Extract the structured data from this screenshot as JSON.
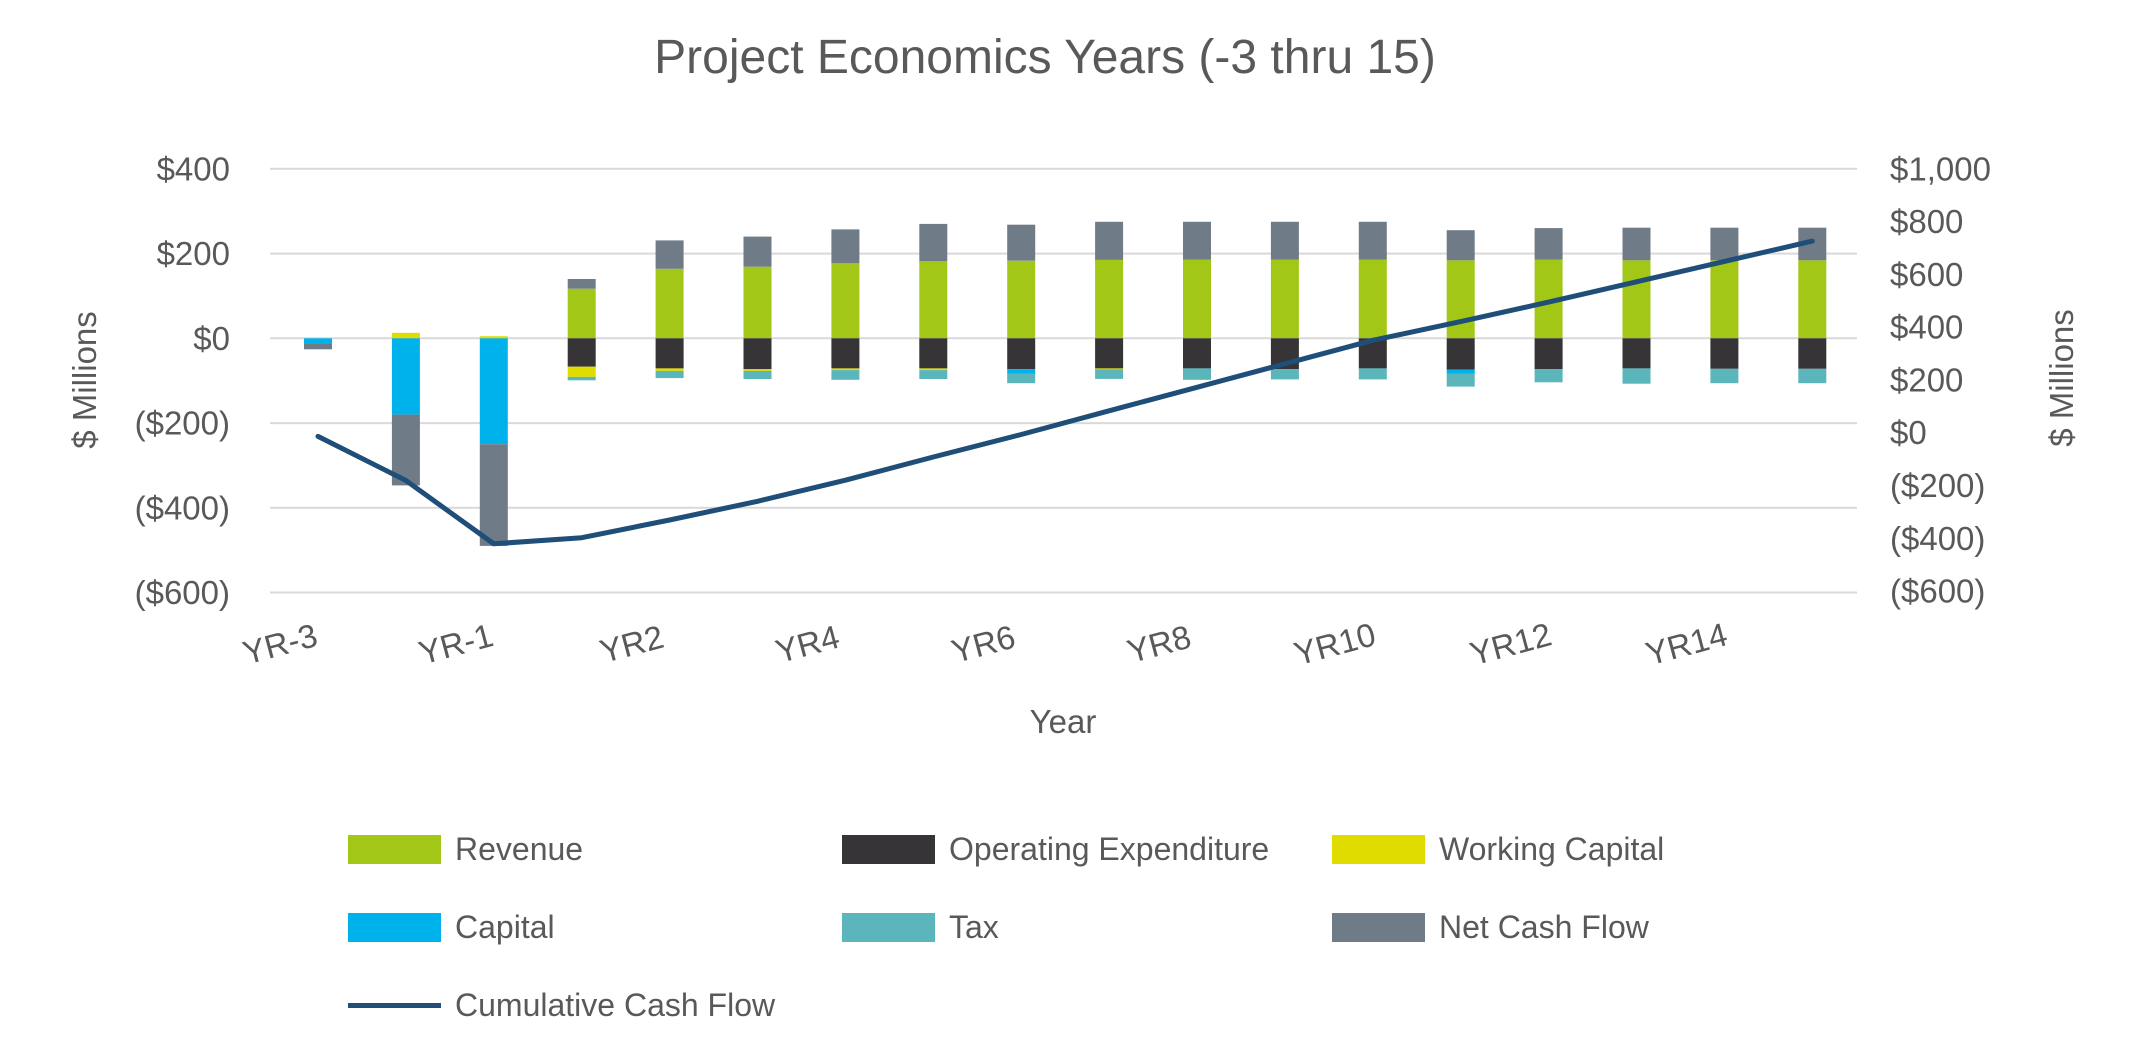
{
  "title": "Project Economics Years (-3 thru 15)",
  "axes": {
    "left": {
      "title": "$ Millions",
      "ticks": [
        {
          "value": 400,
          "label": "$400"
        },
        {
          "value": 200,
          "label": "$200"
        },
        {
          "value": 0,
          "label": "$0"
        },
        {
          "value": -200,
          "label": "($200)"
        },
        {
          "value": -400,
          "label": "($400)"
        },
        {
          "value": -600,
          "label": "($600)"
        }
      ]
    },
    "right": {
      "title": "$ Millions",
      "ticks": [
        {
          "value": 1000,
          "label": "$1,000"
        },
        {
          "value": 800,
          "label": "$800"
        },
        {
          "value": 600,
          "label": "$600"
        },
        {
          "value": 400,
          "label": "$400"
        },
        {
          "value": 200,
          "label": "$200"
        },
        {
          "value": 0,
          "label": "$0"
        },
        {
          "value": -200,
          "label": "($200)"
        },
        {
          "value": -400,
          "label": "($400)"
        },
        {
          "value": -600,
          "label": "($600)"
        }
      ]
    },
    "x": {
      "title": "Year",
      "ticks": [
        {
          "index": 0,
          "label": "YR-3"
        },
        {
          "index": 2,
          "label": "YR-1"
        },
        {
          "index": 4,
          "label": "YR2"
        },
        {
          "index": 6,
          "label": "YR4"
        },
        {
          "index": 8,
          "label": "YR6"
        },
        {
          "index": 10,
          "label": "YR8"
        },
        {
          "index": 12,
          "label": "YR10"
        },
        {
          "index": 14,
          "label": "YR12"
        },
        {
          "index": 16,
          "label": "YR14"
        }
      ]
    }
  },
  "chart_data": {
    "type": "bar",
    "subtype": "stacked-bars-with-cumulative-line",
    "title": "Project Economics Years (-3 thru 15)",
    "xlabel": "Year",
    "ylabel_left": "$ Millions",
    "ylabel_right": "$ Millions",
    "left_axis_range": [
      -600,
      400
    ],
    "right_axis_range": [
      -600,
      1000
    ],
    "gridlines": [
      400,
      200,
      0,
      -200,
      -400,
      -600
    ],
    "grid": true,
    "legend_position": "bottom",
    "categories": [
      "YR-3",
      "YR-2",
      "YR-1",
      "YR1",
      "YR2",
      "YR3",
      "YR4",
      "YR5",
      "YR6",
      "YR7",
      "YR8",
      "YR9",
      "YR10",
      "YR11",
      "YR12",
      "YR13",
      "YR14",
      "YR15"
    ],
    "series": [
      {
        "key": "revenue",
        "name": "Revenue",
        "color": "#A3C716",
        "values": [
          0,
          0,
          0,
          117,
          164,
          169,
          177,
          182,
          183,
          185,
          186,
          186,
          186,
          184,
          186,
          184,
          184,
          184
        ]
      },
      {
        "key": "opex",
        "name": "Operating Expenditure",
        "color": "#363436",
        "values": [
          0,
          0,
          0,
          -67,
          -71,
          -73,
          -71,
          -71,
          -73,
          -71,
          -71,
          -73,
          -71,
          -74,
          -73,
          -71,
          -72,
          -72
        ]
      },
      {
        "key": "working-capital",
        "name": "Working Capital",
        "color": "#E0DC00",
        "values": [
          0,
          13,
          5,
          -24,
          -6,
          -4,
          -4,
          -4,
          0,
          -2,
          0,
          0,
          0,
          0,
          0,
          0,
          0,
          0
        ]
      },
      {
        "key": "capital",
        "name": "Capital",
        "color": "#00B2EC",
        "values": [
          -12,
          -180,
          -250,
          0,
          0,
          0,
          0,
          0,
          -11,
          0,
          0,
          0,
          0,
          -10,
          0,
          0,
          0,
          0
        ]
      },
      {
        "key": "tax",
        "name": "Tax",
        "color": "#5AB6BA",
        "values": [
          0,
          0,
          0,
          -8,
          -17,
          -19,
          -23,
          -21,
          -22,
          -23,
          -27,
          -24,
          -26,
          -30,
          -31,
          -36,
          -34,
          -34
        ]
      },
      {
        "key": "net-cash-flow",
        "name": "Net Cash Flow",
        "color": "#6F7B87",
        "values": [
          -14,
          -167,
          -240,
          23,
          67,
          71,
          80,
          88,
          85,
          90,
          89,
          89,
          89,
          71,
          74,
          77,
          77,
          77
        ]
      }
    ],
    "line_series": {
      "key": "cumulative-cash-flow",
      "name": "Cumulative Cash Flow",
      "color": "#1F4E79",
      "axis": "right",
      "values": [
        -14,
        -181,
        -421,
        -398,
        -331,
        -260,
        -180,
        -92,
        -7,
        83,
        172,
        261,
        350,
        421,
        495,
        572,
        649,
        726
      ]
    }
  },
  "legend": {
    "items": [
      {
        "label": "Revenue",
        "color": "#A3C716",
        "marker": "swatch",
        "col": 0,
        "row": 0
      },
      {
        "label": "Operating Expenditure",
        "color": "#363436",
        "marker": "swatch",
        "col": 1,
        "row": 0
      },
      {
        "label": "Working Capital",
        "color": "#E0DC00",
        "marker": "swatch",
        "col": 2,
        "row": 0
      },
      {
        "label": "Capital",
        "color": "#00B2EC",
        "marker": "swatch",
        "col": 0,
        "row": 1
      },
      {
        "label": "Tax",
        "color": "#5AB6BA",
        "marker": "swatch",
        "col": 1,
        "row": 1
      },
      {
        "label": "Net Cash Flow",
        "color": "#6F7B87",
        "marker": "swatch",
        "col": 2,
        "row": 1
      },
      {
        "label": "Cumulative Cash Flow",
        "color": "#1F4E79",
        "marker": "line",
        "col": 0,
        "row": 2
      }
    ]
  },
  "colors": {
    "text": "#595959",
    "gridline": "#D9D9D9",
    "background": "#FFFFFF"
  }
}
